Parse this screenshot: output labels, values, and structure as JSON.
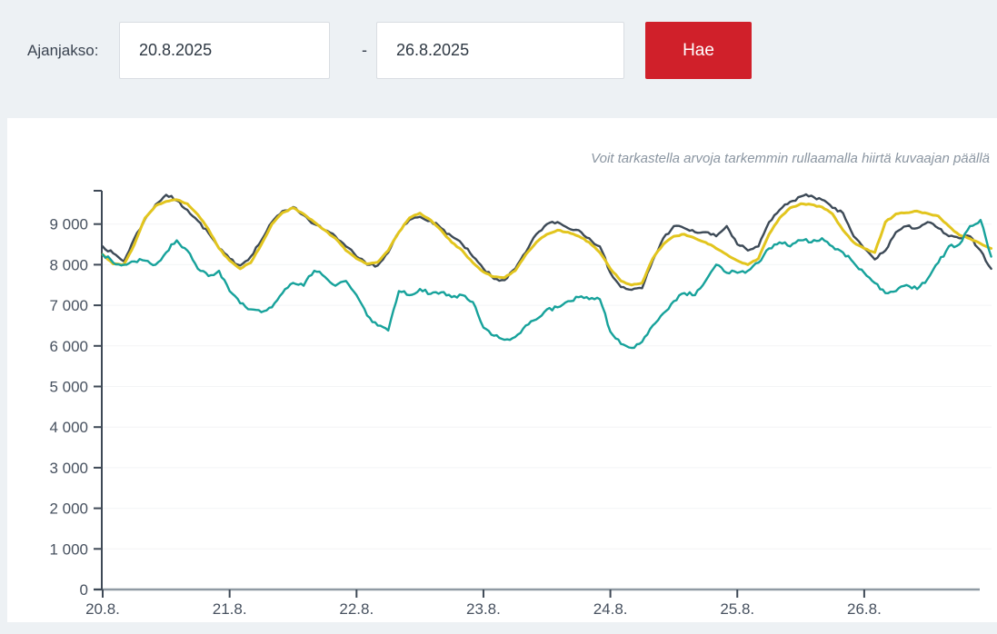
{
  "filters": {
    "label": "Ajanjakso:",
    "start_date": "20.8.2025",
    "separator": "-",
    "end_date": "26.8.2025",
    "search_button": "Hae"
  },
  "chart_note": "Voit tarkastella arvoja tarkemmin rullaamalla hiirtä kuvaajan päällä",
  "colors": {
    "accent_red": "#d0202a",
    "page_bg": "#edf1f4",
    "card_bg": "#ffffff",
    "axis_dark": "#3e4956",
    "axis_light": "#8f9aa3",
    "tick_text": "#47515f",
    "grid_line": "#f3f4f6",
    "series_dark": "#3d4a57",
    "series_yellow": "#e2c51e",
    "series_teal": "#17a29b"
  },
  "chart_data": {
    "type": "line",
    "title": "",
    "xlabel": "",
    "ylabel": "",
    "x_unit": "hours from 20.8.2025 00:00",
    "x_step_hours": 2,
    "xlim_hours": [
      0,
      168
    ],
    "ylim": [
      0,
      9800
    ],
    "grid": "horizontal, very light",
    "legend": "none",
    "x_tick_labels": [
      "20.8.",
      "21.8.",
      "22.8.",
      "23.8.",
      "24.8.",
      "25.8.",
      "26.8."
    ],
    "y_ticks": [
      0,
      1000,
      2000,
      3000,
      4000,
      5000,
      6000,
      7000,
      8000,
      9000
    ],
    "y_tick_labels": [
      "0",
      "1 000",
      "2 000",
      "3 000",
      "4 000",
      "5 000",
      "6 000",
      "7 000",
      "8 000",
      "9 000"
    ],
    "noise": {
      "seed": 7,
      "subdivisions": 4,
      "amplitudes": [
        45,
        16,
        55
      ]
    },
    "series": [
      {
        "name": "series-dark-slate",
        "color": "#3d4a57",
        "values": [
          8450,
          8280,
          8080,
          8650,
          9120,
          9480,
          9720,
          9580,
          9350,
          9080,
          8780,
          8400,
          8150,
          7980,
          8200,
          8600,
          9050,
          9320,
          9420,
          9220,
          9000,
          8850,
          8700,
          8450,
          8200,
          8000,
          7980,
          8300,
          8800,
          9100,
          9180,
          9080,
          8900,
          8700,
          8500,
          8200,
          7900,
          7650,
          7620,
          7900,
          8300,
          8750,
          9000,
          9050,
          8900,
          8850,
          8650,
          8450,
          7800,
          7450,
          7380,
          7420,
          8100,
          8650,
          8950,
          8900,
          8800,
          8800,
          8700,
          8950,
          8500,
          8350,
          8450,
          9050,
          9350,
          9550,
          9680,
          9700,
          9600,
          9400,
          9270,
          8700,
          8400,
          8130,
          8350,
          8800,
          8950,
          8900,
          9050,
          8900,
          8700,
          8650,
          8700,
          8350,
          7900
        ]
      },
      {
        "name": "series-yellow",
        "color": "#e2c51e",
        "values": [
          8250,
          8020,
          8000,
          8500,
          9150,
          9450,
          9560,
          9600,
          9500,
          9230,
          8870,
          8400,
          8100,
          7900,
          8050,
          8500,
          9000,
          9280,
          9400,
          9250,
          9050,
          8850,
          8650,
          8350,
          8150,
          8020,
          8060,
          8350,
          8800,
          9150,
          9270,
          9100,
          8850,
          8550,
          8350,
          8050,
          7820,
          7700,
          7680,
          7850,
          8250,
          8550,
          8750,
          8850,
          8800,
          8700,
          8550,
          8300,
          7900,
          7600,
          7500,
          7550,
          8150,
          8500,
          8700,
          8750,
          8650,
          8550,
          8400,
          8250,
          8100,
          8000,
          8150,
          8750,
          9150,
          9400,
          9500,
          9480,
          9420,
          9250,
          8850,
          8550,
          8400,
          8300,
          9050,
          9250,
          9280,
          9320,
          9260,
          9200,
          8950,
          8730,
          8640,
          8520,
          8400
        ]
      },
      {
        "name": "series-teal",
        "color": "#17a29b",
        "values": [
          8250,
          8050,
          8000,
          8080,
          8100,
          8000,
          8300,
          8600,
          8350,
          7900,
          7720,
          7850,
          7350,
          7050,
          6900,
          6830,
          6950,
          7300,
          7550,
          7480,
          7850,
          7700,
          7480,
          7600,
          7250,
          6750,
          6500,
          6380,
          7350,
          7250,
          7400,
          7280,
          7320,
          7200,
          7250,
          7080,
          6450,
          6250,
          6150,
          6220,
          6500,
          6650,
          6900,
          6950,
          7100,
          7200,
          7150,
          7150,
          6350,
          6050,
          5950,
          6100,
          6500,
          6800,
          7100,
          7300,
          7250,
          7600,
          8000,
          7800,
          7800,
          7850,
          8050,
          8400,
          8550,
          8450,
          8600,
          8550,
          8650,
          8450,
          8300,
          8050,
          7800,
          7550,
          7300,
          7350,
          7500,
          7400,
          7650,
          8050,
          8450,
          8500,
          8950,
          9100,
          8200
        ]
      }
    ]
  }
}
